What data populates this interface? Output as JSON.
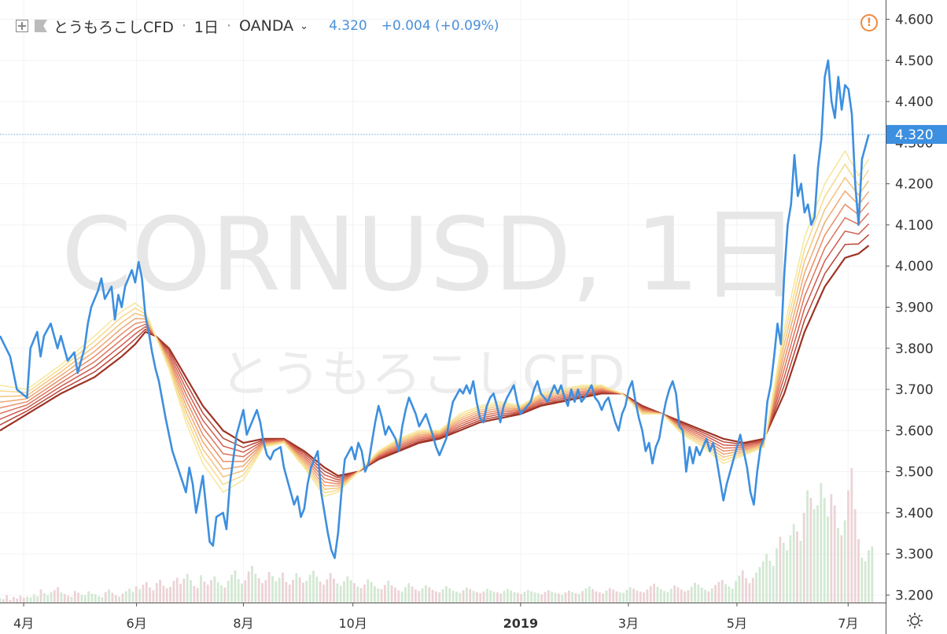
{
  "header": {
    "symbol_name": "とうもろこしCFD",
    "interval": "1日",
    "exchange": "OANDA",
    "last_price": "4.320",
    "change": "+0.004 (+0.09%)"
  },
  "watermark": {
    "ticker": "CORNUSD, 1日",
    "name": "とうもろこしCFD"
  },
  "price_tag": "4.320",
  "colors": {
    "price_line": "#3d8fdf",
    "ribbon": [
      "#f5e79a",
      "#f7d98a",
      "#f4c37c",
      "#f0a873",
      "#e88d66",
      "#de735a",
      "#cf5c4e",
      "#b84536",
      "#9e3324"
    ],
    "volume_up": "#d3e8d3",
    "volume_down": "#ecd3d6",
    "warning": "#f08a3c"
  },
  "icons": {
    "add": "plus-square-icon",
    "flag": "flag-icon",
    "dropdown": "chevron-down-icon",
    "warning": "warning-icon",
    "settings": "sun-gear-icon"
  },
  "chart_data": {
    "type": "line",
    "ylim": [
      3.17,
      4.62
    ],
    "y_ticks": [
      "4.600",
      "4.500",
      "4.400",
      "4.300",
      "4.200",
      "4.100",
      "4.000",
      "3.900",
      "3.800",
      "3.700",
      "3.600",
      "3.500",
      "3.400",
      "3.300",
      "3.200"
    ],
    "x_ticks": [
      {
        "label": "4月",
        "t": 7.0
      },
      {
        "label": "6月",
        "t": 40.4
      },
      {
        "label": "8月",
        "t": 72.0
      },
      {
        "label": "10月",
        "t": 104.4
      },
      {
        "label": "2019",
        "t": 154.0
      },
      {
        "label": "3月",
        "t": 185.9
      },
      {
        "label": "5月",
        "t": 218.0
      },
      {
        "label": "7月",
        "t": 250.9
      }
    ],
    "price": [
      [
        0,
        3.83
      ],
      [
        3,
        3.78
      ],
      [
        5,
        3.7
      ],
      [
        8,
        3.68
      ],
      [
        9,
        3.8
      ],
      [
        11,
        3.84
      ],
      [
        12,
        3.78
      ],
      [
        13,
        3.83
      ],
      [
        15,
        3.86
      ],
      [
        17,
        3.8
      ],
      [
        18,
        3.83
      ],
      [
        20,
        3.77
      ],
      [
        22,
        3.79
      ],
      [
        23,
        3.74
      ],
      [
        25,
        3.8
      ],
      [
        26,
        3.86
      ],
      [
        27,
        3.9
      ],
      [
        29,
        3.94
      ],
      [
        30,
        3.97
      ],
      [
        31,
        3.92
      ],
      [
        33,
        3.95
      ],
      [
        34,
        3.87
      ],
      [
        35,
        3.93
      ],
      [
        36,
        3.9
      ],
      [
        37,
        3.95
      ],
      [
        39,
        3.99
      ],
      [
        40,
        3.96
      ],
      [
        41,
        4.01
      ],
      [
        42,
        3.97
      ],
      [
        43,
        3.88
      ],
      [
        44,
        3.84
      ],
      [
        45,
        3.79
      ],
      [
        46,
        3.75
      ],
      [
        47,
        3.72
      ],
      [
        49,
        3.63
      ],
      [
        51,
        3.55
      ],
      [
        53,
        3.5
      ],
      [
        55,
        3.45
      ],
      [
        56,
        3.51
      ],
      [
        57,
        3.47
      ],
      [
        58,
        3.4
      ],
      [
        60,
        3.49
      ],
      [
        62,
        3.33
      ],
      [
        63,
        3.32
      ],
      [
        64,
        3.39
      ],
      [
        66,
        3.4
      ],
      [
        67,
        3.36
      ],
      [
        68,
        3.47
      ],
      [
        70,
        3.59
      ],
      [
        72,
        3.65
      ],
      [
        73,
        3.59
      ],
      [
        74,
        3.61
      ],
      [
        76,
        3.65
      ],
      [
        77,
        3.62
      ],
      [
        78,
        3.57
      ],
      [
        79,
        3.54
      ],
      [
        80,
        3.53
      ],
      [
        81,
        3.55
      ],
      [
        83,
        3.56
      ],
      [
        84,
        3.51
      ],
      [
        85,
        3.48
      ],
      [
        86,
        3.45
      ],
      [
        87,
        3.42
      ],
      [
        88,
        3.44
      ],
      [
        89,
        3.39
      ],
      [
        90,
        3.41
      ],
      [
        91,
        3.47
      ],
      [
        92,
        3.51
      ],
      [
        94,
        3.55
      ],
      [
        95,
        3.45
      ],
      [
        96,
        3.4
      ],
      [
        97,
        3.35
      ],
      [
        98,
        3.31
      ],
      [
        99,
        3.29
      ],
      [
        100,
        3.35
      ],
      [
        101,
        3.45
      ],
      [
        102,
        3.53
      ],
      [
        104,
        3.56
      ],
      [
        105,
        3.53
      ],
      [
        106,
        3.57
      ],
      [
        107,
        3.55
      ],
      [
        108,
        3.5
      ],
      [
        109,
        3.52
      ],
      [
        110,
        3.57
      ],
      [
        111,
        3.62
      ],
      [
        112,
        3.66
      ],
      [
        113,
        3.63
      ],
      [
        114,
        3.59
      ],
      [
        115,
        3.61
      ],
      [
        117,
        3.58
      ],
      [
        118,
        3.55
      ],
      [
        119,
        3.61
      ],
      [
        120,
        3.65
      ],
      [
        121,
        3.68
      ],
      [
        123,
        3.64
      ],
      [
        124,
        3.61
      ],
      [
        126,
        3.64
      ],
      [
        128,
        3.59
      ],
      [
        129,
        3.56
      ],
      [
        130,
        3.54
      ],
      [
        131,
        3.56
      ],
      [
        132,
        3.58
      ],
      [
        133,
        3.63
      ],
      [
        134,
        3.67
      ],
      [
        136,
        3.7
      ],
      [
        137,
        3.69
      ],
      [
        138,
        3.71
      ],
      [
        139,
        3.69
      ],
      [
        140,
        3.72
      ],
      [
        141,
        3.67
      ],
      [
        142,
        3.63
      ],
      [
        143,
        3.62
      ],
      [
        144,
        3.66
      ],
      [
        145,
        3.68
      ],
      [
        146,
        3.69
      ],
      [
        147,
        3.66
      ],
      [
        148,
        3.62
      ],
      [
        149,
        3.66
      ],
      [
        150,
        3.68
      ],
      [
        152,
        3.71
      ],
      [
        153,
        3.67
      ],
      [
        154,
        3.64
      ],
      [
        155,
        3.65
      ],
      [
        157,
        3.67
      ],
      [
        158,
        3.7
      ],
      [
        159,
        3.72
      ],
      [
        160,
        3.69
      ],
      [
        162,
        3.67
      ],
      [
        163,
        3.69
      ],
      [
        164,
        3.71
      ],
      [
        165,
        3.69
      ],
      [
        166,
        3.71
      ],
      [
        167,
        3.68
      ],
      [
        168,
        3.66
      ],
      [
        169,
        3.7
      ],
      [
        170,
        3.67
      ],
      [
        171,
        3.7
      ],
      [
        172,
        3.67
      ],
      [
        173,
        3.68
      ],
      [
        175,
        3.71
      ],
      [
        176,
        3.68
      ],
      [
        177,
        3.67
      ],
      [
        178,
        3.65
      ],
      [
        179,
        3.67
      ],
      [
        180,
        3.68
      ],
      [
        181,
        3.65
      ],
      [
        182,
        3.62
      ],
      [
        183,
        3.6
      ],
      [
        184,
        3.64
      ],
      [
        185,
        3.66
      ],
      [
        186,
        3.7
      ],
      [
        187,
        3.72
      ],
      [
        188,
        3.67
      ],
      [
        189,
        3.63
      ],
      [
        190,
        3.6
      ],
      [
        191,
        3.55
      ],
      [
        192,
        3.57
      ],
      [
        193,
        3.52
      ],
      [
        194,
        3.56
      ],
      [
        195,
        3.58
      ],
      [
        196,
        3.63
      ],
      [
        197,
        3.67
      ],
      [
        198,
        3.7
      ],
      [
        199,
        3.72
      ],
      [
        200,
        3.69
      ],
      [
        201,
        3.61
      ],
      [
        202,
        3.6
      ],
      [
        203,
        3.5
      ],
      [
        204,
        3.56
      ],
      [
        205,
        3.52
      ],
      [
        206,
        3.56
      ],
      [
        207,
        3.54
      ],
      [
        208,
        3.56
      ],
      [
        209,
        3.58
      ],
      [
        210,
        3.55
      ],
      [
        211,
        3.57
      ],
      [
        212,
        3.53
      ],
      [
        213,
        3.48
      ],
      [
        214,
        3.43
      ],
      [
        215,
        3.47
      ],
      [
        216,
        3.5
      ],
      [
        217,
        3.53
      ],
      [
        218,
        3.56
      ],
      [
        219,
        3.59
      ],
      [
        220,
        3.55
      ],
      [
        221,
        3.51
      ],
      [
        222,
        3.45
      ],
      [
        223,
        3.42
      ],
      [
        224,
        3.5
      ],
      [
        225,
        3.56
      ],
      [
        226,
        3.58
      ],
      [
        227,
        3.67
      ],
      [
        228,
        3.71
      ],
      [
        229,
        3.78
      ],
      [
        230,
        3.86
      ],
      [
        231,
        3.81
      ],
      [
        232,
        3.98
      ],
      [
        233,
        4.1
      ],
      [
        234,
        4.15
      ],
      [
        235,
        4.27
      ],
      [
        236,
        4.17
      ],
      [
        237,
        4.2
      ],
      [
        238,
        4.13
      ],
      [
        239,
        4.15
      ],
      [
        240,
        4.1
      ],
      [
        241,
        4.12
      ],
      [
        242,
        4.24
      ],
      [
        243,
        4.31
      ],
      [
        244,
        4.46
      ],
      [
        245,
        4.5
      ],
      [
        246,
        4.4
      ],
      [
        247,
        4.36
      ],
      [
        248,
        4.46
      ],
      [
        249,
        4.38
      ],
      [
        250,
        4.44
      ],
      [
        251,
        4.43
      ],
      [
        252,
        4.37
      ],
      [
        253,
        4.2
      ],
      [
        254,
        4.1
      ],
      [
        255,
        4.26
      ],
      [
        256,
        4.29
      ],
      [
        257,
        4.32
      ]
    ],
    "ribbon_base": [
      [
        0,
        3.6
      ],
      [
        8,
        3.64
      ],
      [
        18,
        3.69
      ],
      [
        28,
        3.73
      ],
      [
        36,
        3.78
      ],
      [
        40,
        3.81
      ],
      [
        43,
        3.84
      ],
      [
        46,
        3.83
      ],
      [
        50,
        3.8
      ],
      [
        55,
        3.73
      ],
      [
        60,
        3.66
      ],
      [
        66,
        3.6
      ],
      [
        72,
        3.57
      ],
      [
        78,
        3.58
      ],
      [
        84,
        3.58
      ],
      [
        90,
        3.55
      ],
      [
        96,
        3.51
      ],
      [
        100,
        3.49
      ],
      [
        106,
        3.5
      ],
      [
        112,
        3.53
      ],
      [
        118,
        3.55
      ],
      [
        124,
        3.57
      ],
      [
        130,
        3.58
      ],
      [
        136,
        3.6
      ],
      [
        142,
        3.62
      ],
      [
        148,
        3.63
      ],
      [
        154,
        3.64
      ],
      [
        160,
        3.66
      ],
      [
        166,
        3.67
      ],
      [
        172,
        3.68
      ],
      [
        178,
        3.69
      ],
      [
        184,
        3.69
      ],
      [
        190,
        3.66
      ],
      [
        196,
        3.64
      ],
      [
        202,
        3.62
      ],
      [
        208,
        3.6
      ],
      [
        214,
        3.58
      ],
      [
        220,
        3.57
      ],
      [
        226,
        3.58
      ],
      [
        232,
        3.69
      ],
      [
        238,
        3.84
      ],
      [
        244,
        3.95
      ],
      [
        250,
        4.02
      ],
      [
        254,
        4.03
      ],
      [
        257,
        4.05
      ]
    ],
    "ribbon_fast": [
      [
        0,
        3.71
      ],
      [
        8,
        3.7
      ],
      [
        18,
        3.76
      ],
      [
        28,
        3.83
      ],
      [
        36,
        3.89
      ],
      [
        40,
        3.91
      ],
      [
        43,
        3.89
      ],
      [
        46,
        3.83
      ],
      [
        50,
        3.75
      ],
      [
        55,
        3.62
      ],
      [
        60,
        3.52
      ],
      [
        66,
        3.45
      ],
      [
        72,
        3.48
      ],
      [
        78,
        3.56
      ],
      [
        84,
        3.57
      ],
      [
        90,
        3.51
      ],
      [
        96,
        3.44
      ],
      [
        100,
        3.45
      ],
      [
        106,
        3.5
      ],
      [
        112,
        3.55
      ],
      [
        118,
        3.58
      ],
      [
        124,
        3.6
      ],
      [
        130,
        3.6
      ],
      [
        136,
        3.64
      ],
      [
        142,
        3.66
      ],
      [
        148,
        3.67
      ],
      [
        154,
        3.66
      ],
      [
        160,
        3.69
      ],
      [
        166,
        3.7
      ],
      [
        172,
        3.71
      ],
      [
        178,
        3.71
      ],
      [
        184,
        3.69
      ],
      [
        190,
        3.64
      ],
      [
        196,
        3.64
      ],
      [
        202,
        3.59
      ],
      [
        208,
        3.56
      ],
      [
        214,
        3.52
      ],
      [
        220,
        3.54
      ],
      [
        226,
        3.56
      ],
      [
        232,
        3.85
      ],
      [
        238,
        4.07
      ],
      [
        244,
        4.2
      ],
      [
        250,
        4.28
      ],
      [
        254,
        4.22
      ],
      [
        257,
        4.26
      ]
    ],
    "volume": [
      12,
      9,
      20,
      7,
      15,
      11,
      18,
      13,
      16,
      14,
      22,
      17,
      35,
      25,
      19,
      28,
      33,
      41,
      27,
      23,
      18,
      15,
      31,
      26,
      21,
      19,
      30,
      24,
      22,
      17,
      14,
      28,
      35,
      26,
      20,
      16,
      24,
      30,
      37,
      29,
      43,
      36,
      48,
      55,
      40,
      33,
      52,
      61,
      45,
      38,
      42,
      58,
      66,
      50,
      64,
      77,
      60,
      44,
      39,
      73,
      56,
      48,
      60,
      70,
      54,
      46,
      40,
      58,
      74,
      86,
      63,
      51,
      59,
      83,
      98,
      77,
      65,
      52,
      60,
      82,
      71,
      57,
      66,
      80,
      55,
      48,
      61,
      79,
      67,
      53,
      58,
      74,
      85,
      69,
      56,
      48,
      62,
      79,
      64,
      51,
      45,
      57,
      70,
      60,
      52,
      43,
      39,
      48,
      62,
      55,
      44,
      38,
      36,
      47,
      58,
      46,
      40,
      33,
      29,
      41,
      52,
      43,
      35,
      31,
      38,
      46,
      41,
      34,
      30,
      27,
      36,
      44,
      38,
      32,
      29,
      26,
      33,
      40,
      36,
      31,
      28,
      25,
      30,
      37,
      33,
      29,
      27,
      24,
      31,
      36,
      32,
      28,
      26,
      23,
      29,
      34,
      30,
      27,
      25,
      22,
      28,
      33,
      29,
      26,
      24,
      21,
      27,
      32,
      28,
      25,
      23,
      31,
      38,
      43,
      36,
      30,
      27,
      24,
      32,
      39,
      35,
      30,
      27,
      26,
      34,
      41,
      37,
      32,
      29,
      27,
      35,
      44,
      50,
      42,
      36,
      31,
      28,
      37,
      46,
      41,
      35,
      30,
      33,
      42,
      53,
      48,
      40,
      34,
      30,
      38,
      47,
      55,
      61,
      49,
      43,
      37,
      58,
      72,
      86,
      65,
      52,
      66,
      80,
      95,
      110,
      130,
      112,
      98,
      145,
      176,
      160,
      140,
      180,
      210,
      190,
      165,
      240,
      300,
      280,
      250,
      260,
      320,
      280,
      230,
      290,
      260,
      200,
      180,
      220,
      300,
      360,
      250,
      170,
      120,
      110,
      140,
      150
    ]
  }
}
